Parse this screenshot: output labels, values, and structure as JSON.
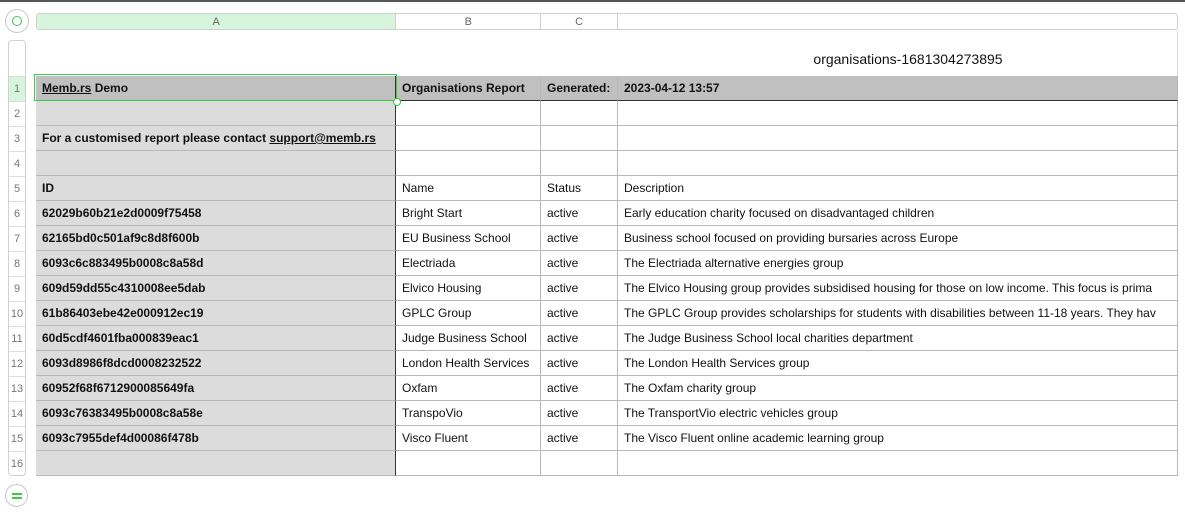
{
  "sheet_title": "organisations-1681304273895",
  "columns": [
    "A",
    "B",
    "C",
    ""
  ],
  "row_numbers": [
    "1",
    "2",
    "3",
    "4",
    "5",
    "6",
    "7",
    "8",
    "9",
    "10",
    "11",
    "12",
    "13",
    "14",
    "15",
    "16"
  ],
  "header": {
    "a_link": "Memb.rs",
    "a_rest": " Demo",
    "b": "Organisations Report",
    "c": "Generated:",
    "d": "2023-04-12 13:57"
  },
  "contact": {
    "text": "For a customised report please contact ",
    "email": "support@memb.rs"
  },
  "table_headers": [
    "ID",
    "Name",
    "Status",
    "Description"
  ],
  "rows": [
    {
      "id": "62029b60b21e2d0009f75458",
      "name": "Bright Start",
      "status": "active",
      "description": "Early education charity focused on disadvantaged children"
    },
    {
      "id": "62165bd0c501af9c8d8f600b",
      "name": "EU Business School",
      "status": "active",
      "description": "Business school focused on providing bursaries across Europe"
    },
    {
      "id": "6093c6c883495b0008c8a58d",
      "name": "Electriada",
      "status": "active",
      "description": "The Electriada alternative energies group"
    },
    {
      "id": "609d59dd55c4310008ee5dab",
      "name": "Elvico Housing",
      "status": "active",
      "description": "The Elvico Housing group provides subsidised housing for those on low income. This focus is prima"
    },
    {
      "id": "61b86403ebe42e000912ec19",
      "name": "GPLC Group",
      "status": "active",
      "description": "The GPLC Group provides scholarships for students with disabilities between 11-18 years. They hav"
    },
    {
      "id": "60d5cdf4601fba000839eac1",
      "name": "Judge Business School",
      "status": "active",
      "description": "The Judge Business School local charities department"
    },
    {
      "id": "6093d8986f8dcd0008232522",
      "name": "London Health Services",
      "status": "active",
      "description": "The London Health Services group"
    },
    {
      "id": "60952f68f6712900085649fa",
      "name": "Oxfam",
      "status": "active",
      "description": "The Oxfam charity group"
    },
    {
      "id": "6093c76383495b0008c8a58e",
      "name": "TranspoVio",
      "status": "active",
      "description": "The TransportVio electric vehicles group"
    },
    {
      "id": "6093c7955def4d00086f478b",
      "name": "Visco Fluent",
      "status": "active",
      "description": "The Visco Fluent online academic learning group"
    }
  ],
  "colors": {
    "accent": "#3cc84a",
    "header_fill": "#c0c0c0",
    "column_a_fill": "#dcdcdc",
    "selection_fill": "#d7f5dc"
  }
}
